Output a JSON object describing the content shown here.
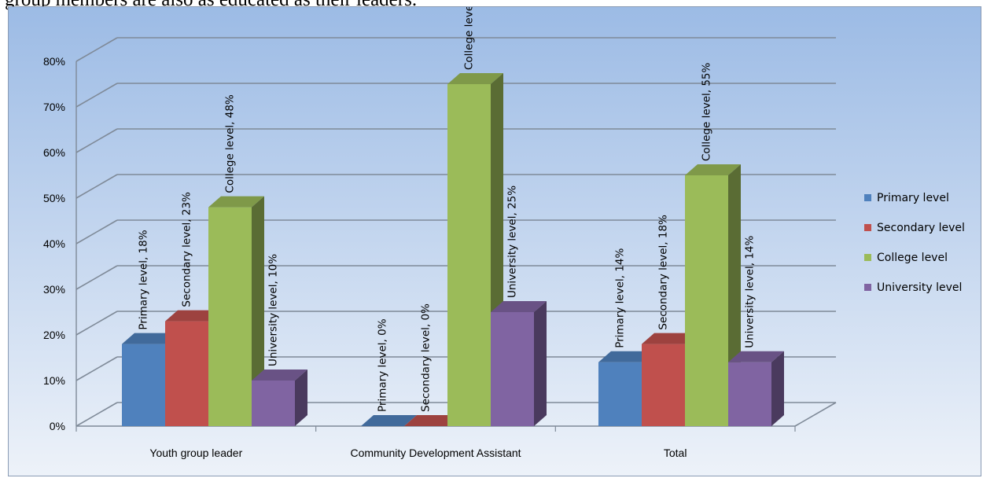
{
  "page": {
    "intro_text": "group members are also as educated as their leaders."
  },
  "chart_data": {
    "type": "bar",
    "categories": [
      "Youth group leader",
      "Community Development Assistant",
      "Total"
    ],
    "series": [
      {
        "name": "Primary level",
        "values": [
          18,
          0,
          14
        ],
        "color": "#4f81bd"
      },
      {
        "name": "Secondary level",
        "values": [
          23,
          0,
          18
        ],
        "color": "#c0504d"
      },
      {
        "name": "College level",
        "values": [
          48,
          75,
          55
        ],
        "color": "#9bbb59"
      },
      {
        "name": "University level",
        "values": [
          10,
          25,
          14
        ],
        "color": "#8064a2"
      }
    ],
    "value_format": "{series}, {value}%",
    "y_ticks": [
      "0%",
      "10%",
      "20%",
      "30%",
      "40%",
      "50%",
      "60%",
      "70%",
      "80%"
    ],
    "ylim": [
      0,
      80
    ],
    "grid": true,
    "legend_position": "right",
    "three_d": true
  }
}
